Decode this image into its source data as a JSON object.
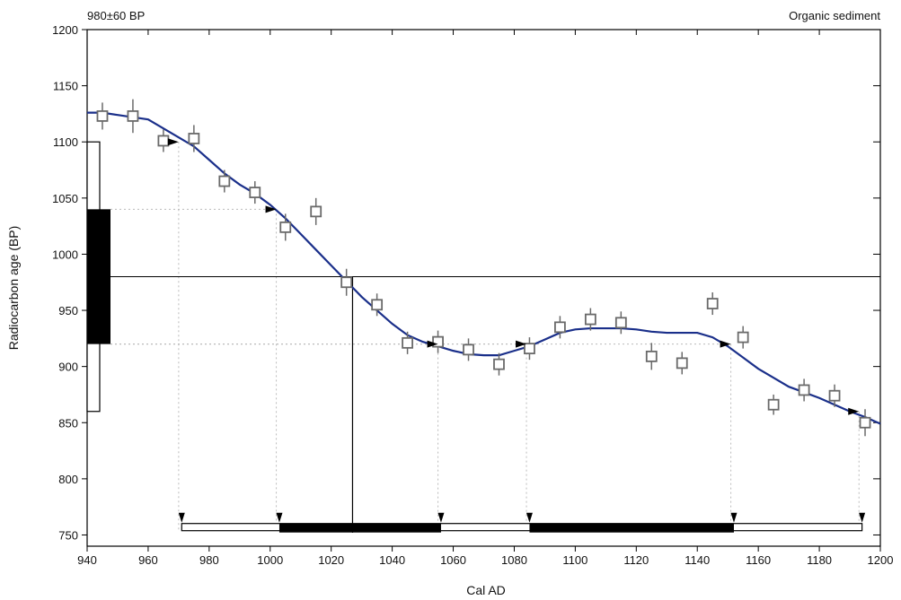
{
  "chart_data": {
    "type": "scatter",
    "title_left": "980±60 BP",
    "title_right": "Organic sediment",
    "xlabel": "Cal AD",
    "ylabel": "Radiocarbon age (BP)",
    "xlim": [
      940,
      1200
    ],
    "ylim": [
      740,
      1200
    ],
    "xticks": [
      940,
      960,
      980,
      1000,
      1020,
      1040,
      1060,
      1080,
      1100,
      1120,
      1140,
      1160,
      1180,
      1200
    ],
    "yticks": [
      750,
      800,
      850,
      900,
      950,
      1000,
      1050,
      1100,
      1150,
      1200
    ],
    "sample": {
      "age": 980,
      "error": 60,
      "one_sigma": [
        920,
        1040
      ],
      "two_sigma": [
        860,
        1100
      ]
    },
    "calibration_curve": {
      "x": [
        940,
        945,
        950,
        955,
        960,
        965,
        970,
        975,
        980,
        985,
        990,
        995,
        1000,
        1005,
        1010,
        1015,
        1020,
        1025,
        1030,
        1035,
        1040,
        1045,
        1050,
        1055,
        1060,
        1065,
        1070,
        1075,
        1080,
        1085,
        1090,
        1095,
        1100,
        1105,
        1110,
        1115,
        1120,
        1125,
        1130,
        1135,
        1140,
        1145,
        1150,
        1155,
        1160,
        1165,
        1170,
        1175,
        1180,
        1185,
        1190,
        1195,
        1200
      ],
      "y": [
        1126,
        1126,
        1124,
        1122,
        1120,
        1112,
        1104,
        1096,
        1084,
        1072,
        1062,
        1054,
        1044,
        1032,
        1018,
        1004,
        990,
        976,
        962,
        950,
        938,
        928,
        922,
        918,
        914,
        911,
        910,
        910,
        914,
        918,
        924,
        930,
        933,
        934,
        934,
        934,
        933,
        931,
        930,
        930,
        930,
        926,
        918,
        908,
        898,
        890,
        882,
        877,
        872,
        866,
        860,
        855,
        849
      ]
    },
    "data_points": [
      {
        "x": 945,
        "y": 1123,
        "err": 12
      },
      {
        "x": 955,
        "y": 1123,
        "err": 15
      },
      {
        "x": 965,
        "y": 1101,
        "err": 10
      },
      {
        "x": 975,
        "y": 1103,
        "err": 12
      },
      {
        "x": 985,
        "y": 1065,
        "err": 10
      },
      {
        "x": 995,
        "y": 1055,
        "err": 10
      },
      {
        "x": 1005,
        "y": 1024,
        "err": 12
      },
      {
        "x": 1015,
        "y": 1038,
        "err": 12
      },
      {
        "x": 1025,
        "y": 975,
        "err": 12
      },
      {
        "x": 1035,
        "y": 955,
        "err": 10
      },
      {
        "x": 1045,
        "y": 921,
        "err": 10
      },
      {
        "x": 1055,
        "y": 922,
        "err": 10
      },
      {
        "x": 1065,
        "y": 915,
        "err": 10
      },
      {
        "x": 1075,
        "y": 902,
        "err": 10
      },
      {
        "x": 1085,
        "y": 916,
        "err": 10
      },
      {
        "x": 1095,
        "y": 935,
        "err": 10
      },
      {
        "x": 1105,
        "y": 942,
        "err": 10
      },
      {
        "x": 1115,
        "y": 939,
        "err": 10
      },
      {
        "x": 1125,
        "y": 909,
        "err": 12
      },
      {
        "x": 1135,
        "y": 903,
        "err": 10
      },
      {
        "x": 1145,
        "y": 956,
        "err": 10
      },
      {
        "x": 1155,
        "y": 926,
        "err": 10
      },
      {
        "x": 1165,
        "y": 866,
        "err": 9
      },
      {
        "x": 1175,
        "y": 879,
        "err": 10
      },
      {
        "x": 1185,
        "y": 874,
        "err": 10
      },
      {
        "x": 1195,
        "y": 850,
        "err": 12
      }
    ],
    "intercept": {
      "age": 980,
      "x": 1027
    },
    "one_sigma_ranges": [
      [
        1003,
        1056
      ],
      [
        1085,
        1152
      ]
    ],
    "two_sigma_range": [
      971,
      1194
    ],
    "one_sigma_arrows": [
      {
        "x": 1002,
        "y": 1040
      },
      {
        "x": 1055,
        "y": 920
      },
      {
        "x": 1084,
        "y": 920
      },
      {
        "x": 1151,
        "y": 920
      }
    ],
    "two_sigma_arrows": [
      {
        "x": 970,
        "y": 1100
      },
      {
        "x": 1193,
        "y": 860
      }
    ],
    "colors": {
      "curve": "#1a2f8a",
      "markers": "#6a6a6a",
      "bars": "#000000"
    }
  }
}
